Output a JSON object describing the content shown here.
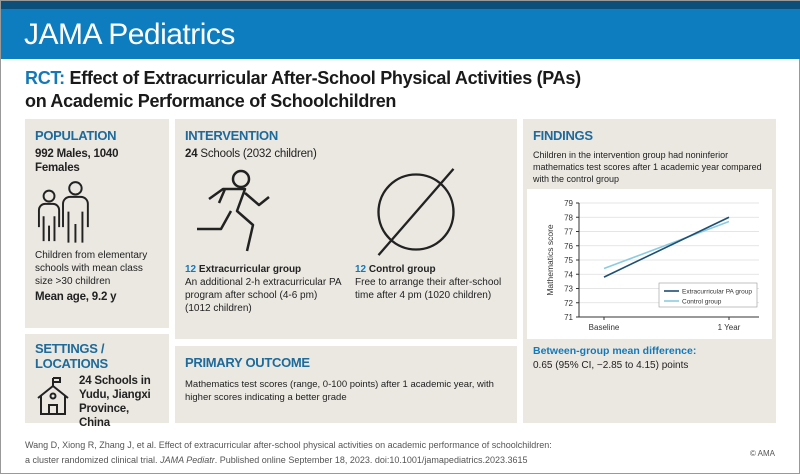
{
  "header": {
    "journal": "JAMA Pediatrics"
  },
  "title": {
    "prefix": "RCT:",
    "line1": "Effect of Extracurricular After-School Physical Activities (PAs)",
    "line2": "on Academic Performance of Schoolchildren"
  },
  "population": {
    "heading": "POPULATION",
    "counts": "992 Males, 1040 Females",
    "desc": "Children from elementary schools with mean class size >30 children",
    "age": "Mean age, 9.2 y",
    "icon": "children-icon"
  },
  "settings": {
    "heading": "SETTINGS / LOCATIONS",
    "text": "24 Schools in Yudu, Jiangxi Province, China",
    "icon": "school-icon"
  },
  "intervention": {
    "heading": "INTERVENTION",
    "schools_num": "24",
    "schools_text": "Schools (2032 children)",
    "group1": {
      "num": "12",
      "label": "Extracurricular group",
      "desc": "An additional 2-h extracurricular PA program after school (4-6 pm) (1012 children)",
      "icon": "running-person-icon"
    },
    "group2": {
      "num": "12",
      "label": "Control group",
      "desc": "Free to arrange their after-school time after 4 pm (1020 children)",
      "icon": "null-circle-icon"
    }
  },
  "outcome": {
    "heading": "PRIMARY OUTCOME",
    "text": "Mathematics test scores (range, 0-100 points) after 1 academic year, with higher scores indicating a better grade"
  },
  "findings": {
    "heading": "FINDINGS",
    "text": "Children in the intervention group had noninferior mathematics test scores after 1 academic year compared with the control group",
    "diff_label": "Between-group mean difference:",
    "diff_value": "0.65 (95% CI, −2.85 to 4.15) points"
  },
  "chart_data": {
    "type": "line",
    "categories": [
      "Baseline",
      "1 Year"
    ],
    "ylabel": "Mathematics score",
    "ylim": [
      71,
      79
    ],
    "yticks": [
      "71",
      "72",
      "73",
      "74",
      "75",
      "76",
      "77",
      "78",
      "79"
    ],
    "grid": true,
    "legend": "bottom-right",
    "series": [
      {
        "name": "Extracurricular PA group",
        "values": [
          73.8,
          78.0
        ],
        "color": "#1d4f73"
      },
      {
        "name": "Control group",
        "values": [
          74.4,
          77.7
        ],
        "color": "#8ccbe0"
      }
    ]
  },
  "footer": {
    "citation1": "Wang D, Xiong R, Zhang J, et al. Effect of extracurricular after-school physical activities on academic performance of schoolchildren:",
    "citation2a": "a cluster randomized clinical trial.",
    "journal_abbr": "JAMA Pediatr",
    "citation2b": ". Published online September 18, 2023. doi:10.1001/jamapediatrics.2023.3615",
    "copyright": "© AMA"
  }
}
